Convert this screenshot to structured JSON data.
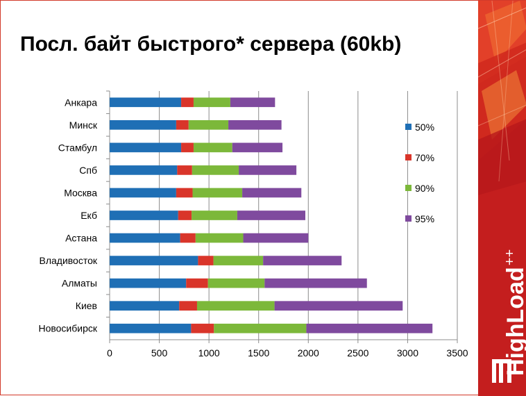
{
  "slide": {
    "title": "Посл. байт быстрого* сервера (60kb)",
    "brand": "HighLoad",
    "brand_sup": "++"
  },
  "chart_data": {
    "type": "bar",
    "orientation": "horizontal",
    "stacked": true,
    "categories": [
      "Анкара",
      "Минск",
      "Стамбул",
      "Спб",
      "Москва",
      "Екб",
      "Астана",
      "Владивосток",
      "Алматы",
      "Киев",
      "Новосибирск"
    ],
    "series": [
      {
        "name": "50%",
        "color": "#1f6fb5",
        "values": [
          720,
          670,
          720,
          680,
          670,
          690,
          710,
          890,
          770,
          700,
          820
        ]
      },
      {
        "name": "70%",
        "color": "#d9352a",
        "values": [
          125,
          125,
          125,
          150,
          165,
          135,
          155,
          155,
          220,
          180,
          230
        ]
      },
      {
        "name": "90%",
        "color": "#7cb83a",
        "values": [
          370,
          400,
          390,
          470,
          500,
          460,
          480,
          500,
          570,
          780,
          930
        ]
      },
      {
        "name": "95%",
        "color": "#7f4a9e",
        "values": [
          450,
          535,
          505,
          580,
          595,
          685,
          655,
          790,
          1030,
          1290,
          1270
        ]
      }
    ],
    "xlim": [
      0,
      3500
    ],
    "xticks": [
      "0",
      "500",
      "1000",
      "1500",
      "2000",
      "2500",
      "3000",
      "3500"
    ],
    "grid": true,
    "legend_position": "right"
  }
}
